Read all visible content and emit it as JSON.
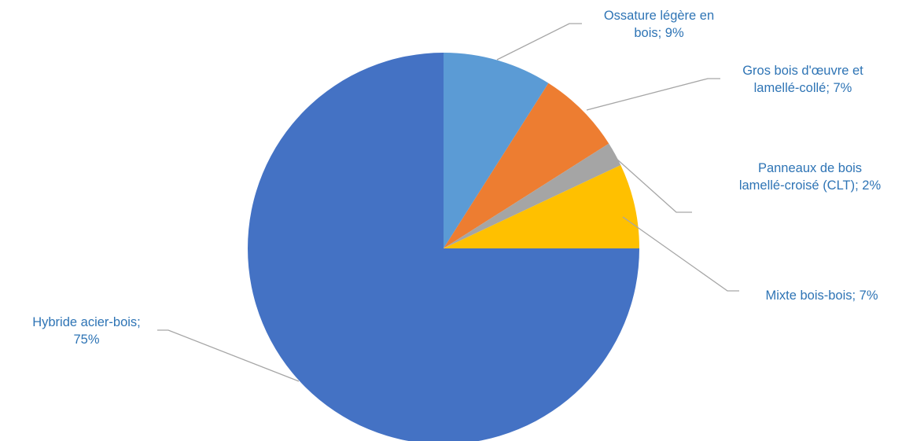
{
  "chart_data": {
    "type": "pie",
    "title": "",
    "legend": "none",
    "label_color": "#2e74b5",
    "start_angle_deg": 0,
    "direction": "clockwise",
    "slices": [
      {
        "label": "Ossature légère en bois",
        "value": 9,
        "percent_label": "9%",
        "color": "#5b9bd5",
        "label_lines": [
          "Ossature légère en",
          "bois; 9%"
        ]
      },
      {
        "label": "Gros bois d'œuvre et lamellé-collé",
        "value": 7,
        "percent_label": "7%",
        "color": "#ed7d31",
        "label_lines": [
          "Gros bois d'œuvre et",
          "lamellé-collé; 7%"
        ]
      },
      {
        "label": "Panneaux de bois lamellé-croisé (CLT)",
        "value": 2,
        "percent_label": "2%",
        "color": "#a5a5a5",
        "label_lines": [
          "Panneaux de bois",
          "lamellé-croisé (CLT); 2%"
        ]
      },
      {
        "label": "Mixte  bois-bois",
        "value": 7,
        "percent_label": "7%",
        "color": "#ffc000",
        "label_lines": [
          "Mixte  bois-bois; 7%"
        ]
      },
      {
        "label": "Hybride  acier-bois",
        "value": 75,
        "percent_label": "75%",
        "color": "#4472c4",
        "label_lines": [
          "Hybride  acier-bois;",
          "75%"
        ]
      }
    ]
  }
}
